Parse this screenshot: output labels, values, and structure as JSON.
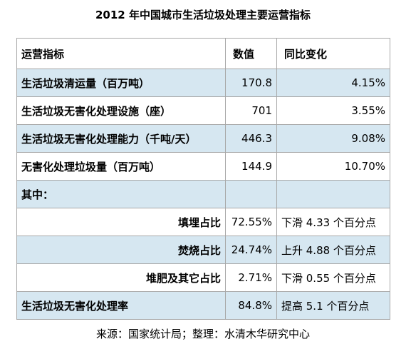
{
  "title": "2012 年中国城市生活垃圾处理主要运营指标",
  "table": {
    "headers": {
      "indicator": "运营指标",
      "value": "数值",
      "change": "同比变化"
    },
    "rows": [
      {
        "indicator": "生活垃圾清运量（百万吨）",
        "value": "170.8",
        "change": "4.15%"
      },
      {
        "indicator": "生活垃圾无害化处理设施（座）",
        "value": "701",
        "change": "3.55%"
      },
      {
        "indicator": "生活垃圾无害化处理能力（千吨/天）",
        "value": "446.3",
        "change": "9.08%"
      },
      {
        "indicator": "无害化处理垃圾量（百万吨）",
        "value": "144.9",
        "change": "10.70%"
      },
      {
        "indicator": "其中：",
        "value": "",
        "change": ""
      },
      {
        "indicator": "填埋占比",
        "value": "72.55%",
        "change": "下滑 4.33 个百分点"
      },
      {
        "indicator": "焚烧占比",
        "value": "24.74%",
        "change": "上升 4.88 个百分点"
      },
      {
        "indicator": "堆肥及其它占比",
        "value": "2.71%",
        "change": "下滑 0.55 个百分点"
      },
      {
        "indicator": "生活垃圾无害化处理率",
        "value": "84.8%",
        "change": "提高 5.1 个百分点"
      }
    ]
  },
  "source": "来源：国家统计局；整理：水清木华研究中心",
  "colors": {
    "row_shade": "#d6e7f1",
    "border": "#a8a8a8"
  }
}
